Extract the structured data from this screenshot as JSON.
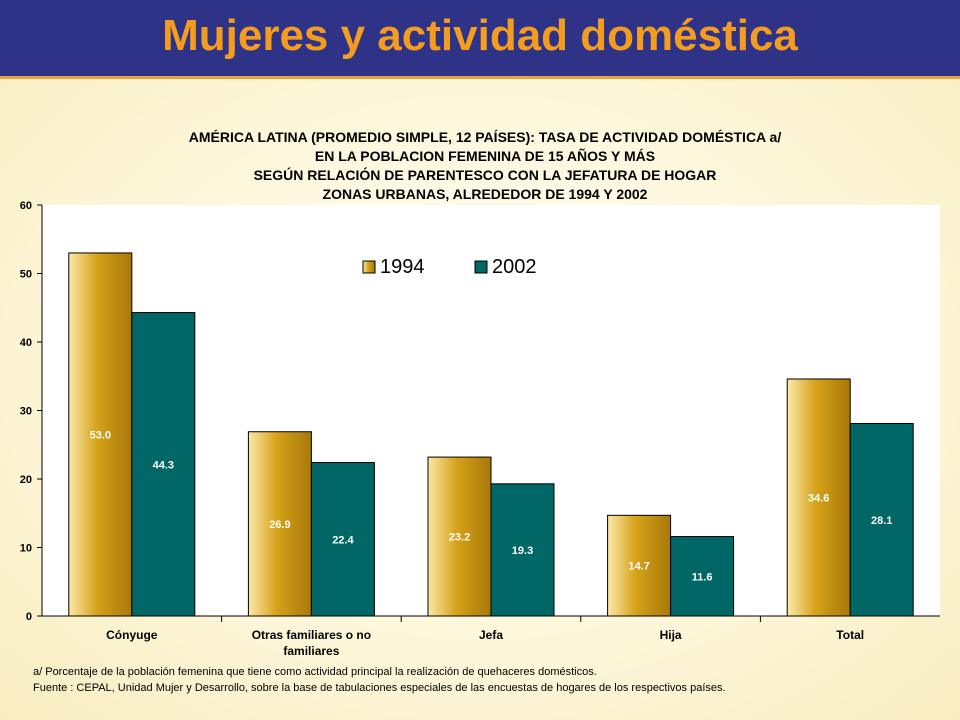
{
  "slide": {
    "title": "Mujeres y actividad doméstica"
  },
  "colors": {
    "header_bg": "#2e3387",
    "title_text": "#f39c1f",
    "series_1994": "#c9950f",
    "series_2002": "#006666"
  },
  "chart_data": {
    "type": "bar",
    "title_lines": [
      "AMÉRICA LATINA (PROMEDIO SIMPLE,  12 PAÍSES):  TASA DE ACTIVIDAD DOMÉSTICA a/",
      "EN LA POBLACION FEMENINA DE 15 AÑOS Y MÁS",
      "SEGÚN RELACIÓN DE PARENTESCO CON LA JEFATURA DE HOGAR",
      "ZONAS URBANAS,  ALREDEDOR DE 1994 Y 2002"
    ],
    "categories": [
      "Cónyuge",
      "Otras familiares o no familiares",
      "Jefa",
      "Hija",
      "Total"
    ],
    "category_label_lines": [
      [
        "Cónyuge"
      ],
      [
        "Otras familiares o no",
        "familiares"
      ],
      [
        "Jefa"
      ],
      [
        "Hija"
      ],
      [
        "Total"
      ]
    ],
    "series": [
      {
        "name": "1994",
        "values": [
          53.0,
          26.9,
          23.2,
          14.7,
          34.6
        ],
        "value_labels": [
          "53.0",
          "26.9",
          "23.2",
          "14.7",
          "34.6"
        ]
      },
      {
        "name": "2002",
        "values": [
          44.3,
          22.4,
          19.3,
          11.6,
          28.1
        ],
        "value_labels": [
          "44.3",
          "22.4",
          "19.3",
          "11.6",
          "28.1"
        ]
      }
    ],
    "ylim": [
      0,
      60
    ],
    "yticks": [
      "0",
      "10",
      "20",
      "30",
      "40",
      "50",
      "60"
    ],
    "legend_position": "top-center",
    "grid": false
  },
  "notes": {
    "footnote": "a/ Porcentaje de la población femenina que tiene como actividad principal la realización de quehaceres domésticos.",
    "source": "Fuente : CEPAL, Unidad Mujer y Desarrollo, sobre la base de tabulaciones especiales de las encuestas de hogares de los respectivos países."
  }
}
